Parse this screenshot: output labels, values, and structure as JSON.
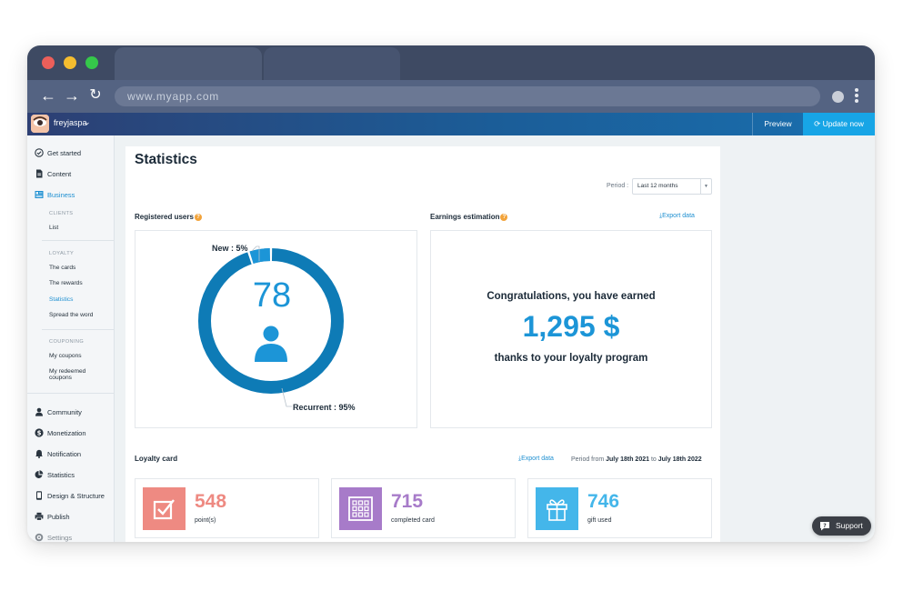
{
  "browser": {
    "url": "www.myapp.com",
    "traffic_lights": [
      "#ec5f5a",
      "#f5bd2f",
      "#35c84a"
    ]
  },
  "header": {
    "username": "freyjaspa",
    "preview_label": "Preview",
    "update_label": "Update now"
  },
  "sidebar": {
    "get_started": "Get started",
    "content": "Content",
    "business": "Business",
    "clients_caption": "CLIENTS",
    "list": "List",
    "loyalty_caption": "LOYALTY",
    "the_cards": "The cards",
    "the_rewards": "The rewards",
    "statistics_sub": "Statistics",
    "spread_the_word": "Spread the word",
    "couponing_caption": "COUPONING",
    "my_coupons": "My coupons",
    "my_redeemed_1": "My redeemed",
    "my_redeemed_2": "coupons",
    "community": "Community",
    "monetization": "Monetization",
    "notification": "Notification",
    "statistics": "Statistics",
    "design_structure": "Design & Structure",
    "publish": "Publish",
    "settings": "Settings"
  },
  "main": {
    "title": "Statistics",
    "period_label": "Period :",
    "period_value": "Last 12 months",
    "registered_users_title": "Registered users",
    "earnings_title": "Earnings estimation",
    "export_label": "Export data",
    "donut": {
      "total": "78",
      "new_label": "New : 5%",
      "recurrent_label": "Recurrent : 95%",
      "new_pct": 5,
      "recurrent_pct": 95
    },
    "earnings": {
      "line1": "Congratulations, you have earned",
      "amount": "1,295 $",
      "line2": "thanks to your loyalty program"
    },
    "loyalty_title": "Loyalty card",
    "period_prefix": "Period from",
    "period_from": "July 18th 2021",
    "period_to_word": "to",
    "period_to": "July 18th 2022",
    "stats": [
      {
        "value": "548",
        "label": "point(s)",
        "color": "#ee8a82",
        "icon": "checkbox-icon"
      },
      {
        "value": "715",
        "label": "completed card",
        "color": "#a77bc9",
        "icon": "grid-card-icon"
      },
      {
        "value": "746",
        "label": "gift used",
        "color": "#44b6ea",
        "icon": "gift-icon"
      }
    ]
  },
  "support_label": "Support",
  "colors": {
    "accent": "#1c95d7",
    "donut_ring": "#0e7bb6"
  }
}
